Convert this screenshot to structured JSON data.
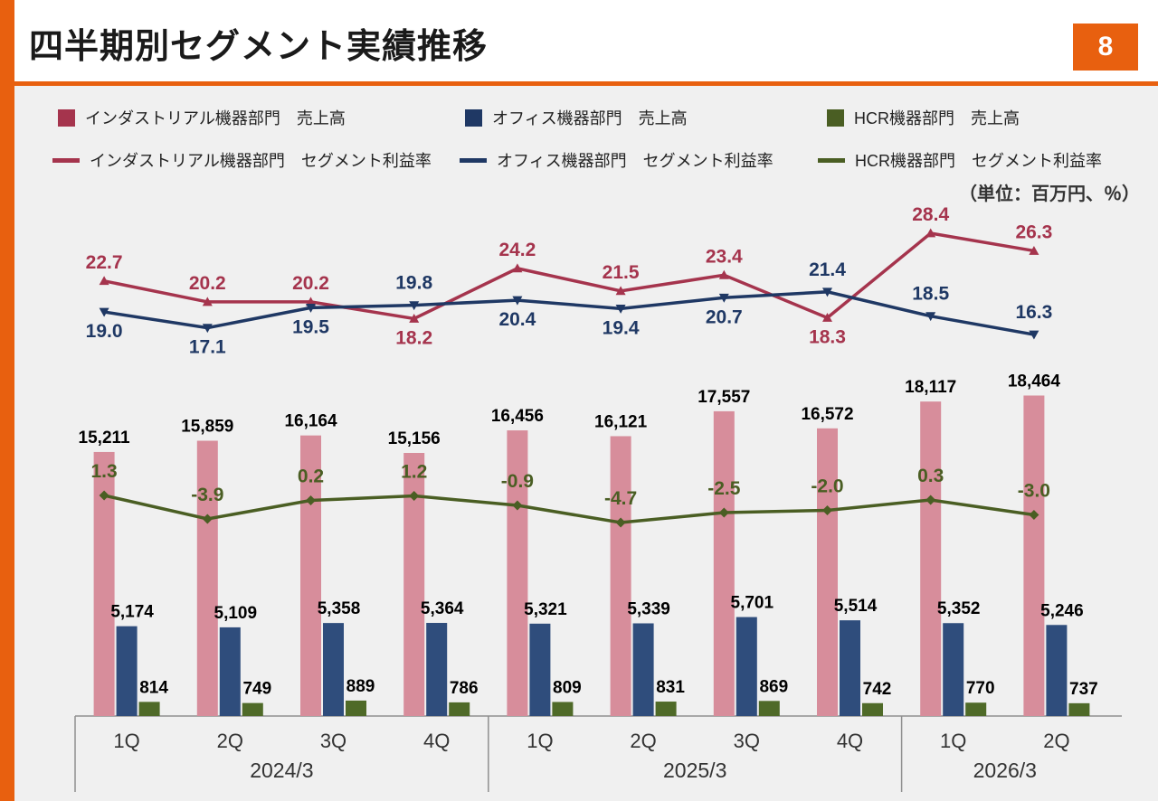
{
  "header": {
    "title": "四半期別セグメント実績推移",
    "page_number": "8"
  },
  "units_note": "（単位：百万円、％）",
  "theme": {
    "accent": "#e8600f",
    "background": "#f0f0f0",
    "axis_color": "#8f8f8f",
    "industrial_color": "#a5344d",
    "industrial_bar_color": "#d78d9b",
    "office_color": "#1f3864",
    "office_bar_color": "#2f4d7c",
    "hcr_color": "#4a5e23",
    "hcr_bar_color": "#4f6a28"
  },
  "legend": {
    "bars": [
      {
        "label": "インダストリアル機器部門　売上高",
        "color": "#a5344d"
      },
      {
        "label": "オフィス機器部門　売上高",
        "color": "#1f3864"
      },
      {
        "label": "HCR機器部門　売上高",
        "color": "#4a5e23"
      }
    ],
    "lines": [
      {
        "label": "インダストリアル機器部門　セグメント利益率",
        "color": "#a5344d"
      },
      {
        "label": "オフィス機器部門　セグメント利益率",
        "color": "#1f3864"
      },
      {
        "label": "HCR機器部門　セグメント利益率",
        "color": "#4a5e23"
      }
    ]
  },
  "chart_data": {
    "type": "combo",
    "unit": "百万円、％",
    "categories": [
      "1Q",
      "2Q",
      "3Q",
      "4Q",
      "1Q",
      "2Q",
      "3Q",
      "4Q",
      "1Q",
      "2Q"
    ],
    "year_groups": [
      {
        "label": "2024/3",
        "span": 4
      },
      {
        "label": "2025/3",
        "span": 4
      },
      {
        "label": "2026/3",
        "span": 2
      }
    ],
    "bar_axis": {
      "min": 0,
      "grid": false,
      "axis_labels_visible": false
    },
    "bar_series": [
      {
        "name": "インダストリアル機器部門 売上高",
        "color": "#d78d9b",
        "values": [
          15211,
          15859,
          16164,
          15156,
          16456,
          16121,
          17557,
          16572,
          18117,
          18464
        ]
      },
      {
        "name": "オフィス機器部門 売上高",
        "color": "#2f4d7c",
        "values": [
          5174,
          5109,
          5358,
          5364,
          5321,
          5339,
          5701,
          5514,
          5352,
          5246
        ]
      },
      {
        "name": "HCR機器部門 売上高",
        "color": "#4f6a28",
        "values": [
          814,
          749,
          889,
          786,
          809,
          831,
          869,
          742,
          770,
          737
        ]
      }
    ],
    "line_series": [
      {
        "name": "インダストリアル機器部門 セグメント利益率",
        "color": "#a5344d",
        "axis": "rate",
        "marker": "triangle-up",
        "values": [
          22.7,
          20.2,
          20.2,
          18.2,
          24.2,
          21.5,
          23.4,
          18.3,
          28.4,
          26.3
        ],
        "label_sides": [
          "above",
          "above",
          "above",
          "below",
          "above",
          "above",
          "above",
          "below",
          "above",
          "above"
        ]
      },
      {
        "name": "オフィス機器部門 セグメント利益率",
        "color": "#1f3864",
        "axis": "rate",
        "marker": "triangle-down",
        "values": [
          19.0,
          17.1,
          19.5,
          19.8,
          20.4,
          19.4,
          20.7,
          21.4,
          18.5,
          16.3
        ],
        "label_sides": [
          "below",
          "below",
          "below",
          "above",
          "below",
          "below",
          "below",
          "above",
          "above",
          "above"
        ]
      },
      {
        "name": "HCR機器部門 セグメント利益率",
        "color": "#4a5e23",
        "axis": "hcr",
        "marker": "diamond",
        "values": [
          1.3,
          -3.9,
          0.2,
          1.2,
          -0.9,
          -4.7,
          -2.5,
          -2.0,
          0.3,
          -3.0
        ],
        "label_sides": [
          "above",
          "above",
          "above",
          "above",
          "above",
          "above",
          "above",
          "above",
          "above",
          "above"
        ]
      }
    ]
  }
}
